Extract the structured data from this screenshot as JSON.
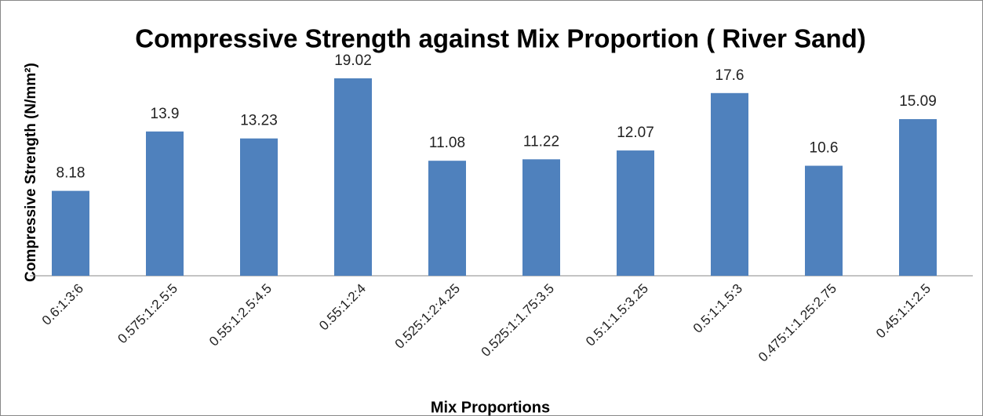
{
  "chart_data": {
    "type": "bar",
    "title": "Compressive Strength against Mix Proportion ( River Sand)",
    "x_label": "Mix Proportions",
    "y_label": "Compressive Strength (N/mm²)",
    "categories": [
      "0.6:1:3:6",
      "0.575:1:2.5:5",
      "0.55:1:2.5:4.5",
      "0.55:1:2:4",
      "0.525:1:2:4.25",
      "0.525:1:1.75:3.5",
      "0.5:1:1.5:3.25",
      "0.5:1:1.5:3",
      "0.475:1:1.25:2.75",
      "0.45:1:1:2.5"
    ],
    "values": [
      8.18,
      13.9,
      13.23,
      19.02,
      11.08,
      11.22,
      12.07,
      17.6,
      10.6,
      15.09
    ],
    "color": "#4f81bd",
    "ylim": [
      0,
      20
    ]
  }
}
